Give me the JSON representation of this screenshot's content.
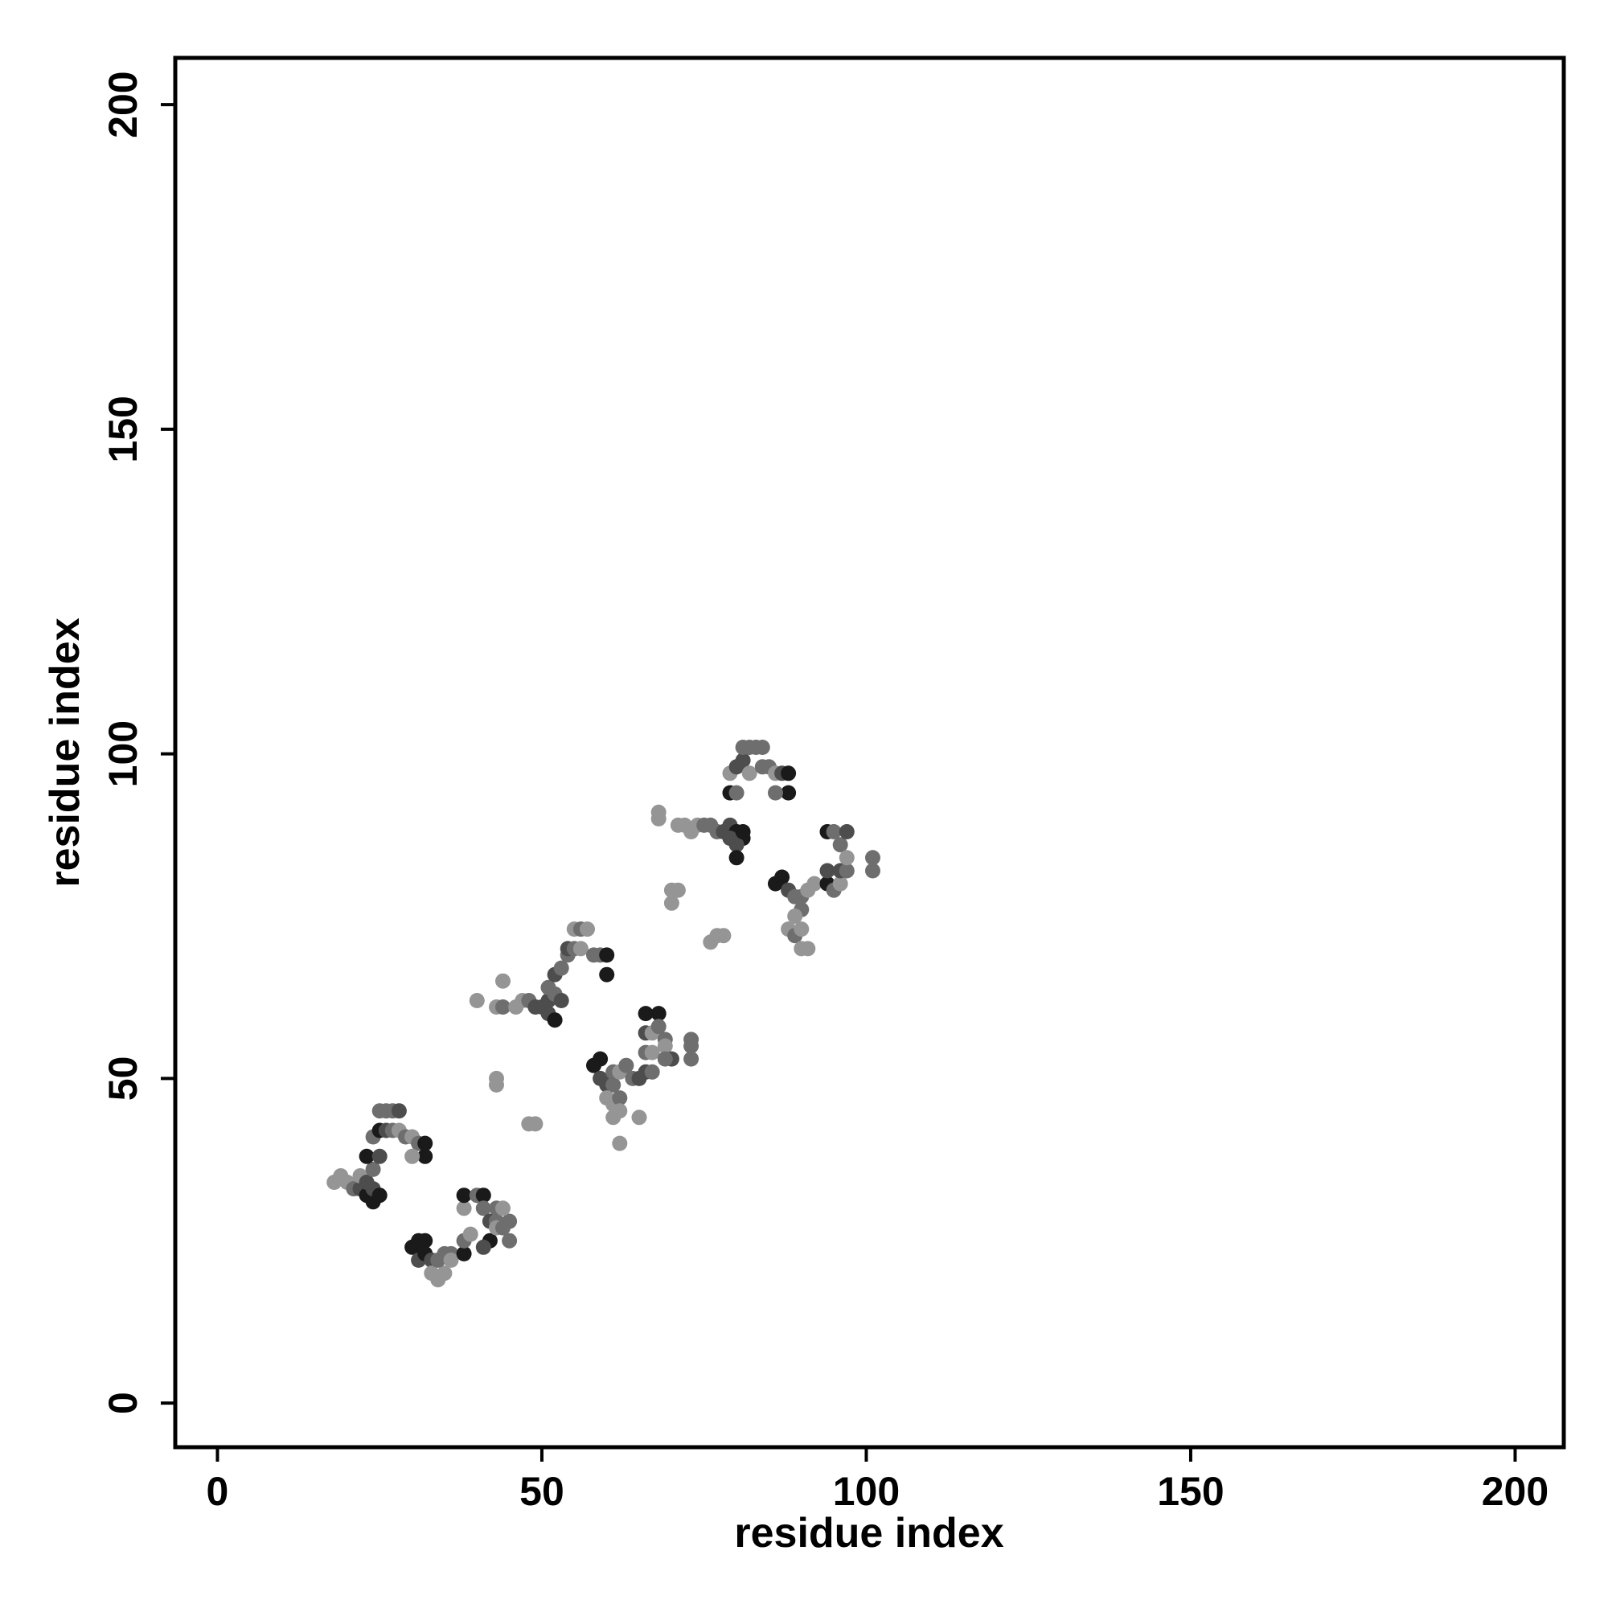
{
  "chart_data": {
    "type": "scatter",
    "title": "",
    "xlabel": "residue index",
    "ylabel": "residue index",
    "xlim": [
      -6.5,
      207.5
    ],
    "ylim": [
      -6.8,
      207.2
    ],
    "xticks": [
      0,
      50,
      100,
      150,
      200
    ],
    "yticks": [
      0,
      50,
      100,
      150,
      200
    ],
    "grid": false,
    "legend": "none",
    "shade_colors": {
      "1": "#1a1a1a",
      "2": "#4d4d4d",
      "3": "#6e6e6e",
      "4": "#959595"
    },
    "point_format": "[x, y, shade] — shade 1 = darkest, 4 = lightest grey",
    "points": [
      [
        18,
        34,
        4
      ],
      [
        19,
        35,
        4
      ],
      [
        20,
        34,
        4
      ],
      [
        21,
        33,
        3
      ],
      [
        22,
        33,
        2
      ],
      [
        22,
        35,
        4
      ],
      [
        23,
        32,
        1
      ],
      [
        23,
        34,
        2
      ],
      [
        24,
        31,
        1
      ],
      [
        24,
        33,
        2
      ],
      [
        25,
        32,
        1
      ],
      [
        24,
        36,
        3
      ],
      [
        23,
        38,
        1
      ],
      [
        25,
        38,
        2
      ],
      [
        24,
        41,
        3
      ],
      [
        25,
        42,
        1
      ],
      [
        26,
        42,
        2
      ],
      [
        27,
        42,
        3
      ],
      [
        28,
        42,
        4
      ],
      [
        29,
        41,
        3
      ],
      [
        30,
        41,
        4
      ],
      [
        31,
        40,
        3
      ],
      [
        32,
        40,
        1
      ],
      [
        32,
        38,
        1
      ],
      [
        30,
        38,
        4
      ],
      [
        25,
        45,
        3
      ],
      [
        26,
        45,
        3
      ],
      [
        27,
        45,
        3
      ],
      [
        28,
        45,
        2
      ],
      [
        30,
        24,
        1
      ],
      [
        31,
        25,
        1
      ],
      [
        32,
        25,
        1
      ],
      [
        31,
        22,
        2
      ],
      [
        32,
        23,
        1
      ],
      [
        33,
        22,
        2
      ],
      [
        33,
        20,
        4
      ],
      [
        34,
        19,
        4
      ],
      [
        35,
        20,
        4
      ],
      [
        34,
        22,
        3
      ],
      [
        35,
        23,
        3
      ],
      [
        36,
        23,
        3
      ],
      [
        36,
        22,
        4
      ],
      [
        38,
        23,
        1
      ],
      [
        38,
        25,
        3
      ],
      [
        39,
        26,
        4
      ],
      [
        38,
        30,
        4
      ],
      [
        38,
        32,
        1
      ],
      [
        40,
        32,
        3
      ],
      [
        41,
        32,
        1
      ],
      [
        41,
        30,
        3
      ],
      [
        42,
        28,
        2
      ],
      [
        43,
        28,
        3
      ],
      [
        42,
        25,
        1
      ],
      [
        41,
        24,
        2
      ],
      [
        43,
        27,
        4
      ],
      [
        44,
        27,
        3
      ],
      [
        45,
        28,
        3
      ],
      [
        45,
        25,
        3
      ],
      [
        43,
        30,
        3
      ],
      [
        44,
        30,
        4
      ],
      [
        40,
        62,
        4
      ],
      [
        43,
        61,
        4
      ],
      [
        44,
        61,
        3
      ],
      [
        44,
        65,
        4
      ],
      [
        46,
        61,
        4
      ],
      [
        47,
        62,
        4
      ],
      [
        48,
        62,
        3
      ],
      [
        49,
        61,
        2
      ],
      [
        50,
        61,
        2
      ],
      [
        51,
        60,
        2
      ],
      [
        52,
        59,
        1
      ],
      [
        51,
        62,
        2
      ],
      [
        52,
        63,
        3
      ],
      [
        53,
        62,
        2
      ],
      [
        51,
        64,
        3
      ],
      [
        52,
        66,
        2
      ],
      [
        53,
        67,
        3
      ],
      [
        54,
        69,
        3
      ],
      [
        54,
        70,
        2
      ],
      [
        55,
        70,
        3
      ],
      [
        56,
        70,
        4
      ],
      [
        55,
        73,
        4
      ],
      [
        56,
        73,
        3
      ],
      [
        57,
        73,
        4
      ],
      [
        58,
        69,
        3
      ],
      [
        59,
        69,
        3
      ],
      [
        60,
        69,
        1
      ],
      [
        60,
        66,
        1
      ],
      [
        48,
        43,
        4
      ],
      [
        49,
        43,
        4
      ],
      [
        43,
        50,
        4
      ],
      [
        43,
        49,
        4
      ],
      [
        58,
        52,
        1
      ],
      [
        59,
        53,
        1
      ],
      [
        59,
        50,
        2
      ],
      [
        60,
        49,
        2
      ],
      [
        61,
        49,
        3
      ],
      [
        60,
        47,
        4
      ],
      [
        61,
        46,
        4
      ],
      [
        62,
        47,
        3
      ],
      [
        61,
        44,
        4
      ],
      [
        62,
        45,
        4
      ],
      [
        62,
        40,
        4
      ],
      [
        61,
        51,
        3
      ],
      [
        62,
        51,
        4
      ],
      [
        63,
        52,
        3
      ],
      [
        64,
        50,
        3
      ],
      [
        65,
        50,
        2
      ],
      [
        66,
        51,
        2
      ],
      [
        67,
        51,
        3
      ],
      [
        66,
        54,
        3
      ],
      [
        67,
        54,
        4
      ],
      [
        66,
        57,
        2
      ],
      [
        67,
        57,
        4
      ],
      [
        66,
        60,
        1
      ],
      [
        68,
        60,
        1
      ],
      [
        68,
        58,
        3
      ],
      [
        69,
        56,
        3
      ],
      [
        69,
        55,
        4
      ],
      [
        70,
        53,
        2
      ],
      [
        69,
        53,
        3
      ],
      [
        73,
        55,
        3
      ],
      [
        73,
        56,
        3
      ],
      [
        73,
        53,
        3
      ],
      [
        65,
        44,
        4
      ],
      [
        68,
        90,
        4
      ],
      [
        68,
        91,
        4
      ],
      [
        71,
        89,
        4
      ],
      [
        72,
        89,
        4
      ],
      [
        73,
        88,
        4
      ],
      [
        74,
        89,
        4
      ],
      [
        75,
        89,
        3
      ],
      [
        76,
        89,
        3
      ],
      [
        77,
        88,
        3
      ],
      [
        78,
        88,
        2
      ],
      [
        79,
        89,
        2
      ],
      [
        80,
        88,
        1
      ],
      [
        81,
        87,
        1
      ],
      [
        80,
        86,
        2
      ],
      [
        79,
        87,
        2
      ],
      [
        80,
        84,
        1
      ],
      [
        81,
        88,
        1
      ],
      [
        70,
        77,
        4
      ],
      [
        70,
        79,
        4
      ],
      [
        71,
        79,
        4
      ],
      [
        76,
        71,
        4
      ],
      [
        77,
        72,
        4
      ],
      [
        78,
        72,
        4
      ],
      [
        79,
        94,
        1
      ],
      [
        80,
        94,
        3
      ],
      [
        79,
        97,
        4
      ],
      [
        80,
        98,
        2
      ],
      [
        81,
        99,
        2
      ],
      [
        82,
        101,
        3
      ],
      [
        83,
        101,
        3
      ],
      [
        84,
        101,
        3
      ],
      [
        81,
        101,
        3
      ],
      [
        82,
        97,
        4
      ],
      [
        84,
        98,
        3
      ],
      [
        85,
        98,
        3
      ],
      [
        86,
        97,
        4
      ],
      [
        87,
        97,
        2
      ],
      [
        88,
        97,
        1
      ],
      [
        88,
        94,
        1
      ],
      [
        86,
        94,
        3
      ],
      [
        86,
        80,
        1
      ],
      [
        87,
        81,
        1
      ],
      [
        88,
        79,
        2
      ],
      [
        89,
        78,
        3
      ],
      [
        90,
        78,
        3
      ],
      [
        91,
        79,
        4
      ],
      [
        90,
        76,
        3
      ],
      [
        89,
        75,
        4
      ],
      [
        88,
        73,
        4
      ],
      [
        89,
        72,
        3
      ],
      [
        90,
        73,
        4
      ],
      [
        90,
        70,
        4
      ],
      [
        91,
        70,
        4
      ],
      [
        92,
        80,
        4
      ],
      [
        94,
        80,
        1
      ],
      [
        94,
        82,
        2
      ],
      [
        95,
        79,
        3
      ],
      [
        96,
        80,
        4
      ],
      [
        94,
        88,
        1
      ],
      [
        95,
        88,
        3
      ],
      [
        96,
        86,
        3
      ],
      [
        96,
        82,
        2
      ],
      [
        97,
        82,
        3
      ],
      [
        97,
        84,
        4
      ],
      [
        97,
        88,
        2
      ],
      [
        101,
        82,
        3
      ],
      [
        101,
        84,
        3
      ]
    ]
  }
}
